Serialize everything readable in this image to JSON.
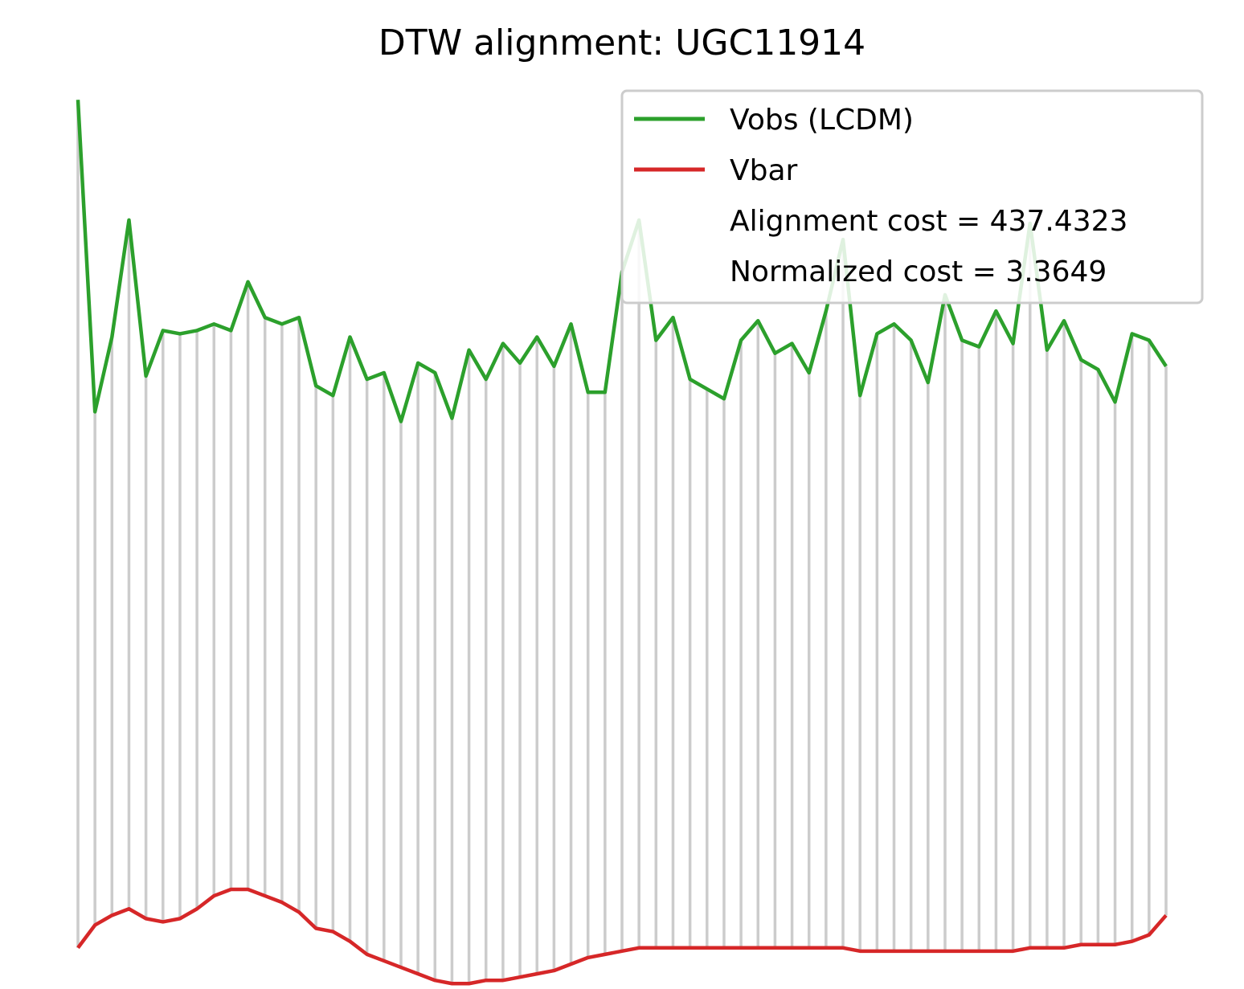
{
  "chart_data": {
    "type": "line",
    "title": "DTW alignment: UGC11914",
    "axes_visible": false,
    "grid": false,
    "ylim": [
      -0.5,
      26.7
    ],
    "legend": {
      "placement": "top-right",
      "entries": [
        "Vobs (LCDM)",
        "Vbar"
      ],
      "annotations": [
        "Alignment cost = 437.4323",
        "Normalized cost = 3.3649"
      ]
    },
    "series": [
      {
        "name": "Vobs (LCDM)",
        "color": "#2ca02c",
        "values": [
          26.1,
          16.5,
          18.8,
          22.4,
          17.6,
          19.0,
          18.9,
          19.0,
          19.2,
          19.0,
          20.5,
          19.4,
          19.2,
          19.4,
          17.3,
          17.0,
          18.8,
          17.5,
          17.7,
          16.2,
          18.0,
          17.7,
          16.3,
          18.4,
          17.5,
          18.6,
          18.0,
          18.8,
          17.9,
          19.2,
          17.1,
          17.1,
          20.8,
          22.4,
          18.7,
          19.4,
          17.5,
          17.2,
          16.9,
          18.7,
          19.3,
          18.3,
          18.6,
          17.7,
          19.6,
          21.8,
          17.0,
          18.9,
          19.2,
          18.7,
          17.4,
          20.1,
          18.7,
          18.5,
          19.6,
          18.6,
          22.3,
          18.4,
          19.3,
          18.1,
          17.8,
          16.8,
          18.9,
          18.7,
          17.9
        ],
        "role": "query"
      },
      {
        "name": "Vbar",
        "color": "#d62728",
        "values": [
          0.0,
          0.7,
          1.0,
          1.2,
          0.9,
          0.8,
          0.9,
          1.2,
          1.6,
          1.8,
          1.8,
          1.6,
          1.4,
          1.1,
          0.6,
          0.5,
          0.2,
          -0.2,
          -0.4,
          -0.6,
          -0.8,
          -1.0,
          -1.1,
          -1.1,
          -1.0,
          -1.0,
          -0.9,
          -0.8,
          -0.7,
          -0.5,
          -0.3,
          -0.2,
          -0.1,
          0.0,
          0.0,
          0.0,
          0.0,
          0.0,
          0.0,
          0.0,
          0.0,
          0.0,
          0.0,
          0.0,
          0.0,
          0.0,
          -0.1,
          -0.1,
          -0.1,
          -0.1,
          -0.1,
          -0.1,
          -0.1,
          -0.1,
          -0.1,
          -0.1,
          0.0,
          0.0,
          0.0,
          0.1,
          0.1,
          0.1,
          0.2,
          0.4,
          1.0
        ],
        "role": "reference"
      }
    ],
    "alignment_lines": {
      "color": "#999999",
      "connects": "Vobs index to Vbar index along DTW warping path"
    }
  }
}
